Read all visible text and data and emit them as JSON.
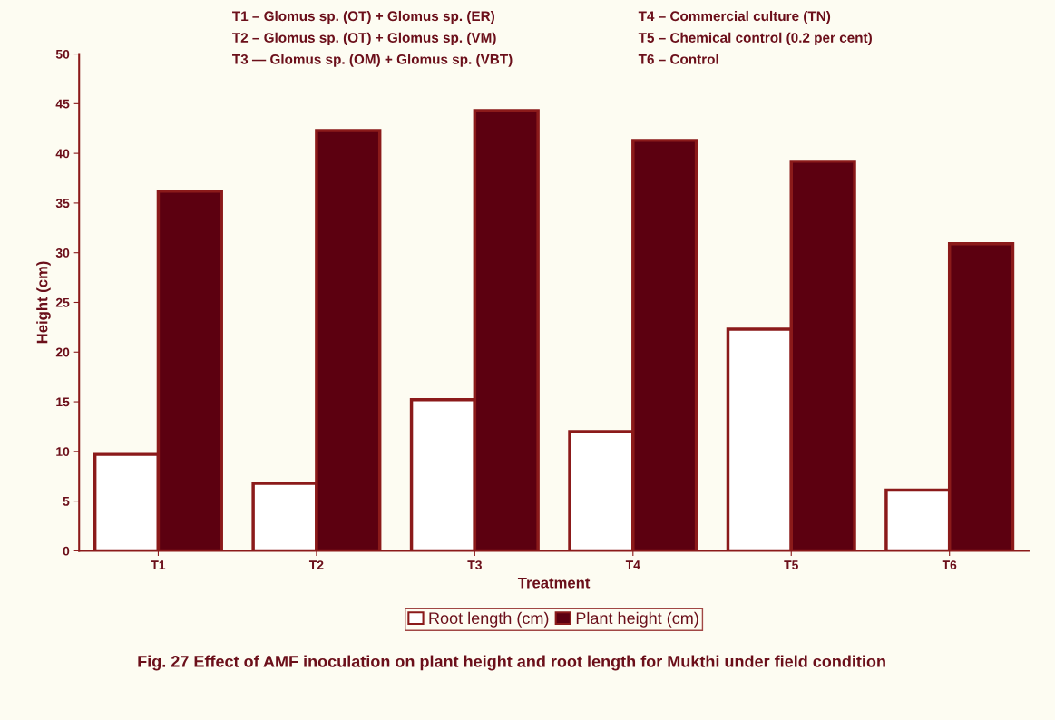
{
  "chart_data": {
    "type": "bar",
    "title": "Fig. 27 Effect of AMF inoculation on plant height and root length for Mukthi under field condition",
    "xlabel": "Treatment",
    "ylabel": "Height (cm)",
    "categories": [
      "T1",
      "T2",
      "T3",
      "T4",
      "T5",
      "T6"
    ],
    "series": [
      {
        "name": "Root length (cm)",
        "color": "#ffffff",
        "values": [
          9.7,
          6.8,
          15.2,
          12.0,
          22.3,
          6.1
        ]
      },
      {
        "name": "Plant height (cm)",
        "color": "#5c0010",
        "values": [
          36.2,
          42.3,
          44.3,
          41.3,
          39.2,
          30.9
        ]
      }
    ],
    "ylim": [
      0,
      50
    ],
    "yticks": [
      0,
      5,
      10,
      15,
      20,
      25,
      30,
      35,
      40,
      45,
      50
    ],
    "grid": false,
    "legend": "bottom",
    "annotations": [
      "T1 – Glomus sp. (OT) + Glomus sp. (ER)",
      "T2 – Glomus sp. (OT) + Glomus sp. (VM)",
      "T3 — Glomus sp. (OM) + Glomus sp. (VBT)",
      "T4 – Commercial culture (TN)",
      "T5 – Chemical control (0.2 per cent)",
      "T6 – Control"
    ]
  }
}
